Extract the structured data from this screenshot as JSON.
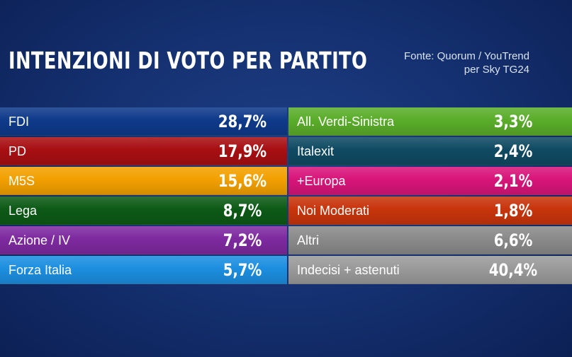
{
  "header": {
    "title": "INTENZIONI DI VOTO PER PARTITO",
    "source_line1": "Fonte: Quorum / YouTrend",
    "source_line2": "per Sky TG24"
  },
  "chart_data": {
    "type": "table",
    "title": "INTENZIONI DI VOTO PER PARTITO",
    "columns": [
      [
        {
          "label": "FDI",
          "value": 28.7,
          "display": "28,7%",
          "color": "#0e3a8a"
        },
        {
          "label": "PD",
          "value": 17.9,
          "display": "17,9%",
          "color": "#a80f12"
        },
        {
          "label": "M5S",
          "value": 15.6,
          "display": "15,6%",
          "color": "#f2a000"
        },
        {
          "label": "Lega",
          "value": 8.7,
          "display": "8,7%",
          "color": "#0d5a16"
        },
        {
          "label": "Azione / IV",
          "value": 7.2,
          "display": "7,2%",
          "color": "#7e2aa0"
        },
        {
          "label": "Forza Italia",
          "value": 5.7,
          "display": "5,7%",
          "color": "#1c8ee0"
        }
      ],
      [
        {
          "label": "All. Verdi-Sinistra",
          "value": 3.3,
          "display": "3,3%",
          "color": "#5aad2a"
        },
        {
          "label": "Italexit",
          "value": 2.4,
          "display": "2,4%",
          "color": "#0f4a62"
        },
        {
          "label": "+Europa",
          "value": 2.1,
          "display": "2,1%",
          "color": "#d8157a"
        },
        {
          "label": "Noi Moderati",
          "value": 1.8,
          "display": "1,8%",
          "color": "#c8350c"
        },
        {
          "label": "Altri",
          "value": 6.6,
          "display": "6,6%",
          "color": "#8a8a8a"
        },
        {
          "label": "Indecisi + astenuti",
          "value": 40.4,
          "display": "40,4%",
          "color": "#9a9a9a"
        }
      ]
    ]
  }
}
